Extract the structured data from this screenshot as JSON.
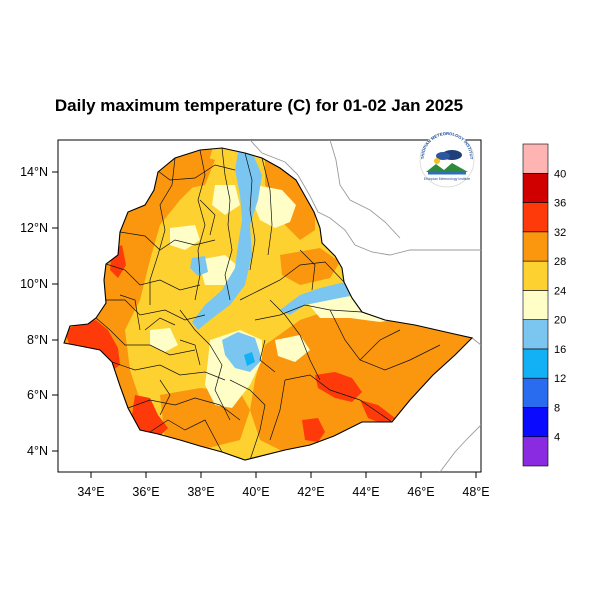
{
  "title": "Daily maximum temperature (C) for 01-02 Jan 2025",
  "map": {
    "x_ticks": [
      "34°E",
      "36°E",
      "38°E",
      "40°E",
      "42°E",
      "44°E",
      "46°E",
      "48°E"
    ],
    "y_ticks": [
      "14°N",
      "12°N",
      "10°N",
      "8°N",
      "6°N",
      "4°N"
    ],
    "x_range_deg": [
      33,
      48.2
    ],
    "y_range_deg": [
      3.2,
      15.1
    ]
  },
  "legend": {
    "levels": [
      "4",
      "8",
      "12",
      "16",
      "20",
      "24",
      "28",
      "32",
      "36",
      "40"
    ],
    "colors": [
      "#8a2be2",
      "#0a0aff",
      "#2a6cf0",
      "#12b0f5",
      "#7ac6f0",
      "#fefec6",
      "#fdd230",
      "#fb960f",
      "#ff3a0a",
      "#d10000",
      "#ffb4b4"
    ]
  },
  "logo": {
    "arc_text": "ETHIOPIAN METEOROLOGY INSTITUTE",
    "caption": "Ethiopian Meteorology Institute"
  }
}
